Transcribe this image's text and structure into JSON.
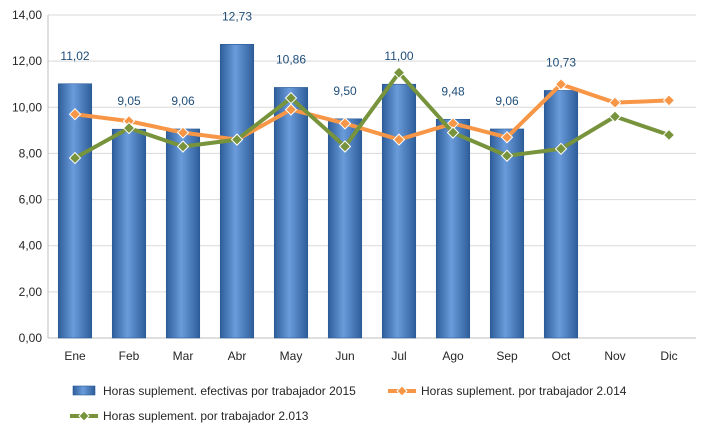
{
  "chart_data": {
    "type": "bar",
    "categories": [
      "Ene",
      "Feb",
      "Mar",
      "Abr",
      "May",
      "Jun",
      "Jul",
      "Ago",
      "Sep",
      "Oct",
      "Nov",
      "Dic"
    ],
    "ylim": [
      0,
      14
    ],
    "yticks": [
      "0,00",
      "2,00",
      "4,00",
      "6,00",
      "8,00",
      "10,00",
      "12,00",
      "14,00"
    ],
    "ytick_values": [
      0,
      2,
      4,
      6,
      8,
      10,
      12,
      14
    ],
    "grid": true,
    "legend_position": "bottom",
    "series": [
      {
        "name": "Horas suplement. efectivas por trabajador 2015",
        "kind": "bar",
        "color": "#4F81BD",
        "values": [
          11.02,
          9.05,
          9.06,
          12.73,
          10.86,
          9.5,
          11.0,
          9.48,
          9.06,
          10.73,
          null,
          null
        ],
        "labels": [
          "11,02",
          "9,05",
          "9,06",
          "12,73",
          "10,86",
          "9,50",
          "11,00",
          "9,48",
          "9,06",
          "10,73",
          "",
          ""
        ]
      },
      {
        "name": "Horas suplement. por trabajador 2.014",
        "kind": "line",
        "color": "#F79646",
        "values": [
          9.7,
          9.4,
          8.9,
          8.6,
          9.9,
          9.3,
          8.6,
          9.3,
          8.7,
          11.0,
          10.2,
          10.3
        ]
      },
      {
        "name": "Horas suplement. por trabajador 2.013",
        "kind": "line",
        "color": "#77933C",
        "values": [
          7.8,
          9.1,
          8.3,
          8.6,
          10.4,
          8.3,
          11.5,
          8.9,
          7.9,
          8.2,
          9.6,
          8.8
        ]
      }
    ]
  }
}
